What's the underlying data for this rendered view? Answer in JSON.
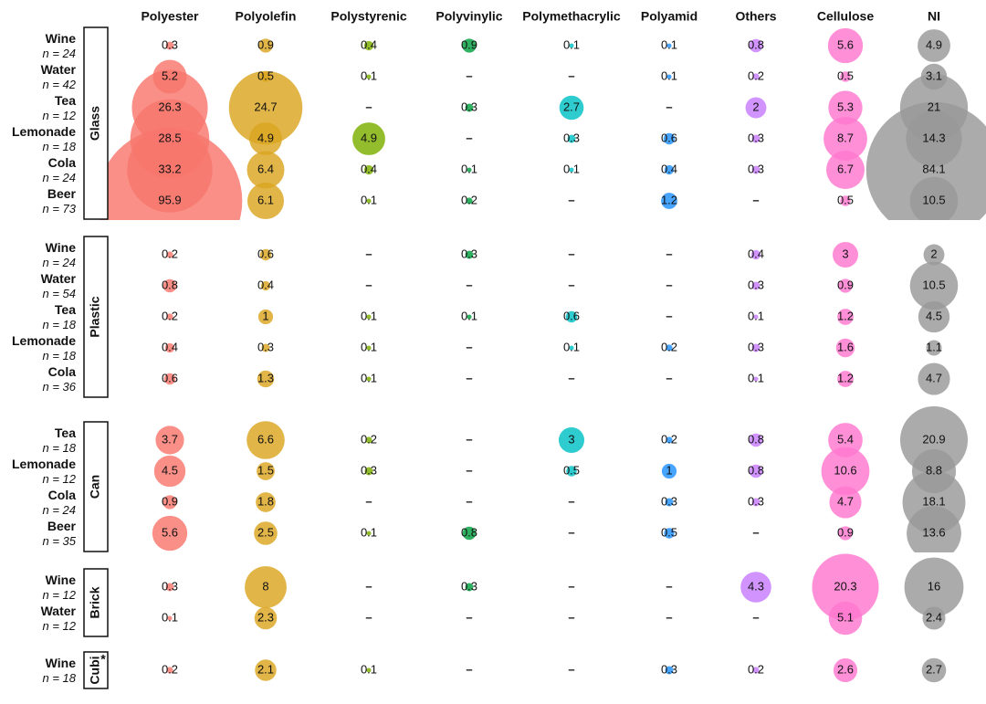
{
  "chart_data": {
    "type": "bubble-matrix",
    "columns": [
      "Polyester",
      "Polyolefin",
      "Polystyrenic",
      "Polyvinylic",
      "Polymethacrylic",
      "Polyamid",
      "Others",
      "Cellulose",
      "NI"
    ],
    "colors": [
      "#f8766d",
      "#daa520",
      "#7cae00",
      "#00a03e",
      "#00bfc4",
      "#1e90ff",
      "#c77cff",
      "#ff77d0",
      "#999999"
    ],
    "groups": [
      {
        "label": "Glass",
        "rows": [
          {
            "beverage": "Wine",
            "n": "n = 24",
            "values": [
              "0.3",
              "0.9",
              "0.4",
              "0.9",
              "0.1",
              "0.1",
              "0.8",
              "5.6",
              "4.9"
            ]
          },
          {
            "beverage": "Water",
            "n": "n = 42",
            "values": [
              "5.2",
              "0.5",
              "0.1",
              "–",
              "–",
              "0.1",
              "0.2",
              "0.5",
              "3.1"
            ]
          },
          {
            "beverage": "Tea",
            "n": "n = 12",
            "values": [
              "26.3",
              "24.7",
              "–",
              "0.3",
              "2.7",
              "–",
              "2",
              "5.3",
              "21"
            ]
          },
          {
            "beverage": "Lemonade",
            "n": "n = 18",
            "values": [
              "28.5",
              "4.9",
              "4.9",
              "–",
              "0.3",
              "0.6",
              "0.3",
              "8.7",
              "14.3"
            ]
          },
          {
            "beverage": "Cola",
            "n": "n = 24",
            "values": [
              "33.2",
              "6.4",
              "0.4",
              "0.1",
              "0.1",
              "0.4",
              "0.3",
              "6.7",
              "84.1"
            ]
          },
          {
            "beverage": "Beer",
            "n": "n = 73",
            "values": [
              "95.9",
              "6.1",
              "0.1",
              "0.2",
              "–",
              "1.2",
              "–",
              "0.5",
              "10.5"
            ]
          }
        ]
      },
      {
        "label": "Plastic",
        "rows": [
          {
            "beverage": "Wine",
            "n": "n = 24",
            "values": [
              "0.2",
              "0.6",
              "–",
              "0.3",
              "–",
              "–",
              "0.4",
              "3",
              "2"
            ]
          },
          {
            "beverage": "Water",
            "n": "n = 54",
            "values": [
              "0.8",
              "0.4",
              "–",
              "–",
              "–",
              "–",
              "0.3",
              "0.9",
              "10.5"
            ]
          },
          {
            "beverage": "Tea",
            "n": "n = 18",
            "values": [
              "0.2",
              "1",
              "0.1",
              "0.1",
              "0.6",
              "–",
              "0.1",
              "1.2",
              "4.5"
            ]
          },
          {
            "beverage": "Lemonade",
            "n": "n = 18",
            "values": [
              "0.4",
              "0.3",
              "0.1",
              "–",
              "0.1",
              "0.2",
              "0.3",
              "1.6",
              "1.1"
            ]
          },
          {
            "beverage": "Cola",
            "n": "n = 36",
            "values": [
              "0.6",
              "1.3",
              "0.1",
              "–",
              "–",
              "–",
              "0.1",
              "1.2",
              "4.7"
            ]
          }
        ]
      },
      {
        "label": "Can",
        "rows": [
          {
            "beverage": "Tea",
            "n": "n = 18",
            "values": [
              "3.7",
              "6.6",
              "0.2",
              "–",
              "3",
              "0.2",
              "0.8",
              "5.4",
              "20.9"
            ]
          },
          {
            "beverage": "Lemonade",
            "n": "n = 12",
            "values": [
              "4.5",
              "1.5",
              "0.3",
              "–",
              "0.5",
              "1",
              "0.8",
              "10.6",
              "8.8"
            ]
          },
          {
            "beverage": "Cola",
            "n": "n = 24",
            "values": [
              "0.9",
              "1.8",
              "–",
              "–",
              "–",
              "0.3",
              "0.3",
              "4.7",
              "18.1"
            ]
          },
          {
            "beverage": "Beer",
            "n": "n = 35",
            "values": [
              "5.6",
              "2.5",
              "0.1",
              "0.8",
              "–",
              "0.5",
              "–",
              "0.9",
              "13.6"
            ]
          }
        ]
      },
      {
        "label": "Brick",
        "rows": [
          {
            "beverage": "Wine",
            "n": "n = 12",
            "values": [
              "0.3",
              "8",
              "–",
              "0.3",
              "–",
              "–",
              "4.3",
              "20.3",
              "16"
            ]
          },
          {
            "beverage": "Water",
            "n": "n = 12",
            "values": [
              "0.1",
              "2.3",
              "–",
              "–",
              "–",
              "–",
              "–",
              "5.1",
              "2.4"
            ]
          }
        ]
      },
      {
        "label": "Cubi",
        "label_mark": "*",
        "rows": [
          {
            "beverage": "Wine",
            "n": "n = 18",
            "values": [
              "0.2",
              "2.1",
              "0.1",
              "–",
              "–",
              "0.3",
              "0.2",
              "2.6",
              "2.7"
            ]
          }
        ]
      }
    ]
  }
}
